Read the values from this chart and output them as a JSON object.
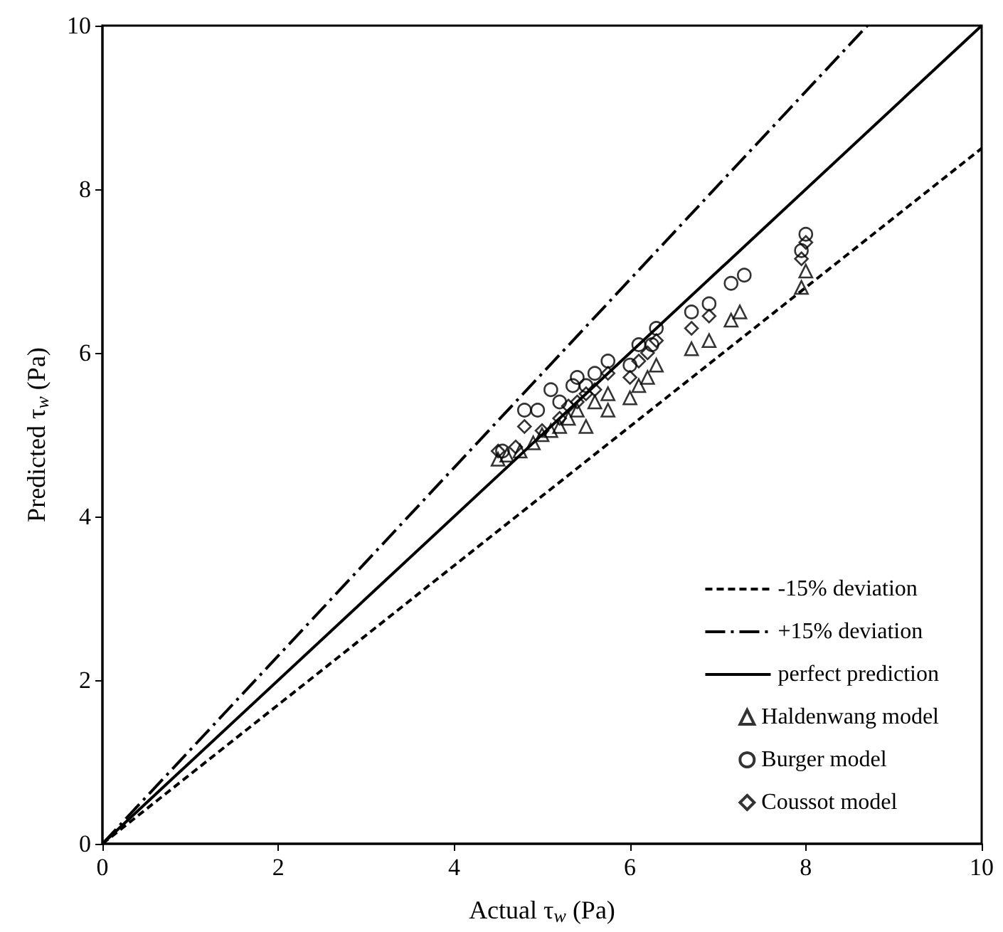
{
  "chart_data": {
    "type": "scatter",
    "xlabel": "Actual τ$_{w}$ (Pa)",
    "ylabel": "Predicted τ$_{w}$ (Pa)",
    "xlim": [
      0,
      10
    ],
    "ylim": [
      0,
      10
    ],
    "xticks": [
      0,
      2,
      4,
      6,
      8,
      10
    ],
    "yticks": [
      0,
      2,
      4,
      6,
      8,
      10
    ],
    "grid": false,
    "legend": "bottom right",
    "series": [
      {
        "name": "-15% deviation",
        "type": "line",
        "line_style": "dashed",
        "marker": "none",
        "color": "#000000",
        "x": [
          0,
          10
        ],
        "values": [
          0,
          8.5
        ]
      },
      {
        "name": "+15% deviation",
        "type": "line",
        "line_style": "dashdot",
        "marker": "none",
        "color": "#000000",
        "x": [
          0,
          8.7
        ],
        "values": [
          0,
          10
        ]
      },
      {
        "name": "perfect prediction",
        "type": "line",
        "line_style": "solid",
        "marker": "none",
        "color": "#000000",
        "x": [
          0,
          10
        ],
        "values": [
          0,
          10
        ]
      },
      {
        "name": "Haldenwang model",
        "type": "scatter",
        "marker": "triangle",
        "color": "#000000",
        "x": [
          4.5,
          4.6,
          4.75,
          4.9,
          5.0,
          5.1,
          5.2,
          5.3,
          5.4,
          5.5,
          5.6,
          5.75,
          5.75,
          6.0,
          6.1,
          6.2,
          6.3,
          6.7,
          6.9,
          7.15,
          7.25,
          7.95,
          8.0
        ],
        "values": [
          4.7,
          4.75,
          4.8,
          4.9,
          5.0,
          5.05,
          5.1,
          5.2,
          5.3,
          5.1,
          5.4,
          5.5,
          5.3,
          5.45,
          5.6,
          5.7,
          5.85,
          6.05,
          6.15,
          6.4,
          6.5,
          6.8,
          7.0
        ]
      },
      {
        "name": "Burger model",
        "type": "scatter",
        "marker": "circle",
        "color": "#000000",
        "x": [
          4.55,
          4.8,
          4.95,
          5.1,
          5.2,
          5.35,
          5.4,
          5.5,
          5.6,
          5.75,
          6.0,
          6.1,
          6.25,
          6.3,
          6.7,
          6.9,
          7.15,
          7.3,
          7.95,
          8.0
        ],
        "values": [
          4.8,
          5.3,
          5.3,
          5.55,
          5.4,
          5.6,
          5.7,
          5.6,
          5.75,
          5.9,
          5.85,
          6.1,
          6.1,
          6.3,
          6.5,
          6.6,
          6.85,
          6.95,
          7.25,
          7.45
        ]
      },
      {
        "name": "Coussot model",
        "type": "scatter",
        "marker": "diamond",
        "color": "#000000",
        "x": [
          4.5,
          4.7,
          4.8,
          5.0,
          5.2,
          5.3,
          5.4,
          5.5,
          5.6,
          5.75,
          6.0,
          6.1,
          6.2,
          6.3,
          6.7,
          6.9,
          7.95,
          8.0
        ],
        "values": [
          4.8,
          4.85,
          5.1,
          5.05,
          5.2,
          5.35,
          5.4,
          5.5,
          5.55,
          5.75,
          5.7,
          5.9,
          6.0,
          6.15,
          6.3,
          6.45,
          7.15,
          7.35
        ]
      }
    ]
  }
}
